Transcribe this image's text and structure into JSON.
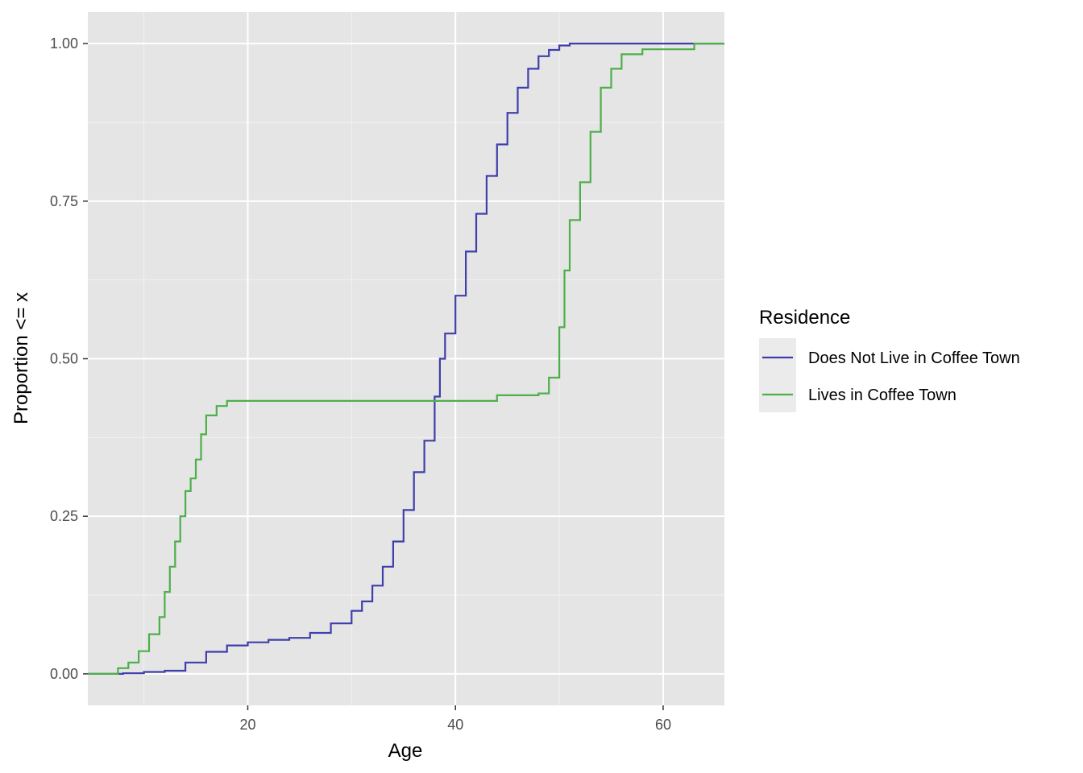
{
  "chart_data": {
    "type": "line",
    "subtype": "empirical-cdf-step",
    "xlabel": "Age",
    "ylabel": "Proportion <= x",
    "xlim": [
      4.6,
      65.9
    ],
    "ylim": [
      -0.05,
      1.05
    ],
    "x_ticks": [
      20,
      40,
      60
    ],
    "x_tick_labels": [
      "20",
      "40",
      "60"
    ],
    "y_ticks": [
      0,
      0.25,
      0.5,
      0.75,
      1.0
    ],
    "y_tick_labels": [
      "0.00",
      "0.25",
      "0.50",
      "0.75",
      "1.00"
    ],
    "grid": true,
    "panel_background": "#e5e5e5",
    "legend": {
      "title": "Residence",
      "position": "right"
    },
    "series": [
      {
        "name": "Does Not Live in Coffee Town",
        "color": "#3f3fab",
        "x": [
          4.6,
          8,
          10,
          12,
          14,
          16,
          18,
          20,
          22,
          24,
          26,
          28,
          30,
          31,
          32,
          33,
          34,
          35,
          36,
          37,
          38,
          38.5,
          39,
          40,
          41,
          42,
          43,
          44,
          45,
          46,
          47,
          48,
          49,
          50,
          51,
          52,
          55,
          60,
          63,
          65.9
        ],
        "y": [
          0,
          0.001,
          0.003,
          0.005,
          0.018,
          0.035,
          0.045,
          0.05,
          0.054,
          0.057,
          0.065,
          0.08,
          0.1,
          0.115,
          0.14,
          0.17,
          0.21,
          0.26,
          0.32,
          0.37,
          0.44,
          0.5,
          0.54,
          0.6,
          0.67,
          0.73,
          0.79,
          0.84,
          0.89,
          0.93,
          0.96,
          0.98,
          0.99,
          0.997,
          1.0,
          1.0,
          1.0,
          1.0,
          1.0,
          1.0
        ]
      },
      {
        "name": "Lives in Coffee Town",
        "color": "#4daf4a",
        "x": [
          4.6,
          7.5,
          8.5,
          9.5,
          10.5,
          11.5,
          12,
          12.5,
          13,
          13.5,
          14,
          14.5,
          15,
          15.5,
          16,
          17,
          18,
          30,
          44,
          45,
          48,
          49,
          50,
          50.5,
          51,
          52,
          53,
          54,
          55,
          56,
          58,
          60,
          63,
          65.9
        ],
        "y": [
          0,
          0.009,
          0.018,
          0.036,
          0.063,
          0.09,
          0.13,
          0.17,
          0.21,
          0.25,
          0.29,
          0.31,
          0.34,
          0.38,
          0.41,
          0.425,
          0.433,
          0.433,
          0.442,
          0.442,
          0.445,
          0.47,
          0.55,
          0.64,
          0.72,
          0.78,
          0.86,
          0.93,
          0.96,
          0.983,
          0.991,
          0.991,
          1.0,
          1.0
        ]
      }
    ]
  }
}
